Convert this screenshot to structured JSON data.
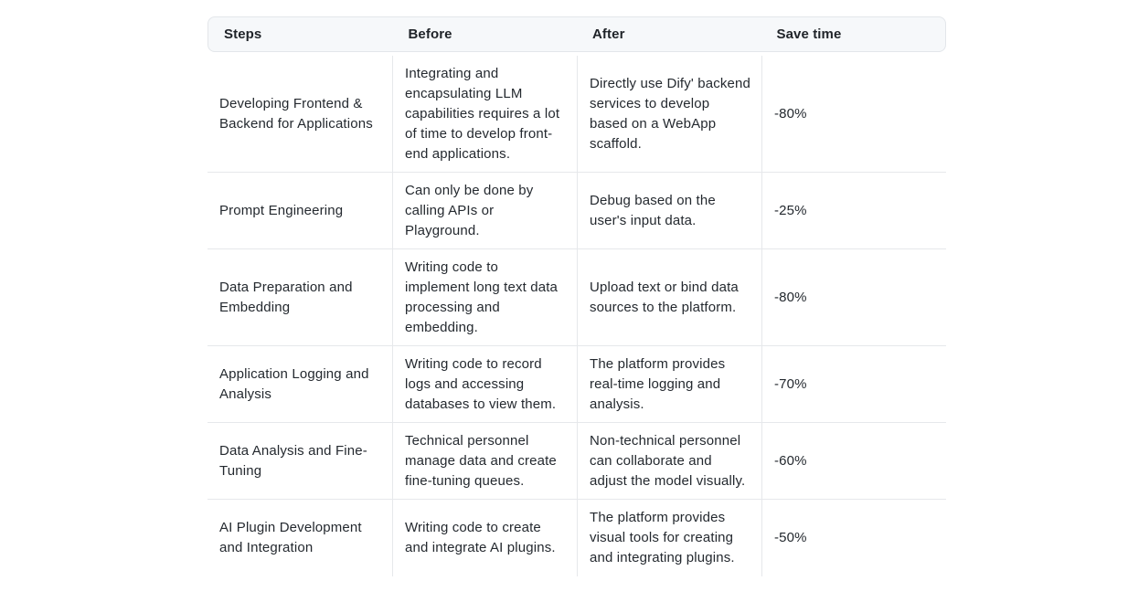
{
  "table": {
    "headers": [
      "Steps",
      "Before",
      "After",
      "Save time"
    ],
    "rows": [
      {
        "steps": "Developing Frontend & Backend for Applications",
        "before": "Integrating and encapsulating LLM capabilities requires a lot of time to develop front-end applications.",
        "after": "Directly use Dify' backend services to develop based on a WebApp scaffold.",
        "save": "-80%"
      },
      {
        "steps": "Prompt Engineering",
        "before": "Can only be done by calling APIs or Playground.",
        "after": "Debug based on the user's input data.",
        "save": "-25%"
      },
      {
        "steps": "Data Preparation and Embedding",
        "before": "Writing code to implement long text data processing and embedding.",
        "after": "Upload text or bind data sources to the platform.",
        "save": "-80%"
      },
      {
        "steps": "Application Logging and Analysis",
        "before": "Writing code to record logs and accessing databases to view them.",
        "after": "The platform provides real-time logging and analysis.",
        "save": "-70%"
      },
      {
        "steps": "Data Analysis and Fine-Tuning",
        "before": "Technical personnel manage data and create fine-tuning queues.",
        "after": "Non-technical personnel can collaborate and adjust the model visually.",
        "save": "-60%"
      },
      {
        "steps": "AI Plugin Development and Integration",
        "before": "Writing code to create and integrate AI plugins.",
        "after": "The platform provides visual tools for creating and integrating plugins.",
        "save": "-50%"
      }
    ]
  }
}
